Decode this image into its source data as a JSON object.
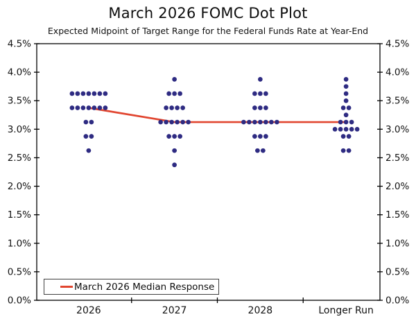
{
  "chart_data": {
    "type": "scatter",
    "variant": "fomc-dot-plot",
    "title": "March 2026 FOMC Dot Plot",
    "subtitle": "Expected Midpoint of Target Range for the Federal Funds Rate at Year-End",
    "categories": [
      "2026",
      "2027",
      "2028",
      "Longer Run"
    ],
    "ylim": [
      0.0,
      4.5
    ],
    "ytick_step": 0.5,
    "ytick_labels": [
      "0.0%",
      "0.5%",
      "1.0%",
      "1.5%",
      "2.0%",
      "2.5%",
      "3.0%",
      "3.5%",
      "4.0%",
      "4.5%"
    ],
    "ytick_labels_shown_on": [
      "left",
      "right"
    ],
    "grid": "off",
    "series": [
      {
        "name": "2026",
        "dots": [
          {
            "rate": 3.625,
            "count": 7
          },
          {
            "rate": 3.375,
            "count": 7
          },
          {
            "rate": 3.125,
            "count": 2
          },
          {
            "rate": 2.875,
            "count": 2
          },
          {
            "rate": 2.625,
            "count": 1
          }
        ]
      },
      {
        "name": "2027",
        "dots": [
          {
            "rate": 3.875,
            "count": 1
          },
          {
            "rate": 3.625,
            "count": 3
          },
          {
            "rate": 3.375,
            "count": 4
          },
          {
            "rate": 3.125,
            "count": 6
          },
          {
            "rate": 2.875,
            "count": 3
          },
          {
            "rate": 2.625,
            "count": 1
          },
          {
            "rate": 2.375,
            "count": 1
          }
        ]
      },
      {
        "name": "2028",
        "dots": [
          {
            "rate": 3.875,
            "count": 1
          },
          {
            "rate": 3.625,
            "count": 3
          },
          {
            "rate": 3.375,
            "count": 3
          },
          {
            "rate": 3.125,
            "count": 7
          },
          {
            "rate": 2.875,
            "count": 3
          },
          {
            "rate": 2.625,
            "count": 2
          }
        ]
      },
      {
        "name": "Longer Run",
        "dots": [
          {
            "rate": 3.875,
            "count": 1
          },
          {
            "rate": 3.75,
            "count": 1
          },
          {
            "rate": 3.625,
            "count": 1
          },
          {
            "rate": 3.5,
            "count": 1
          },
          {
            "rate": 3.375,
            "count": 2
          },
          {
            "rate": 3.25,
            "count": 1
          },
          {
            "rate": 3.125,
            "count": 3
          },
          {
            "rate": 3.0,
            "count": 5
          },
          {
            "rate": 2.875,
            "count": 2
          },
          {
            "rate": 2.625,
            "count": 2
          }
        ]
      }
    ],
    "median_line": {
      "label": "March 2026 Median Response",
      "values": [
        3.375,
        3.125,
        3.125,
        3.125
      ]
    },
    "legend_position": "bottom-left inside plot",
    "colors": {
      "dot": "#2e2b82",
      "median": "#e1452f",
      "axis": "#000000",
      "text": "#111111",
      "background": "#ffffff"
    }
  }
}
